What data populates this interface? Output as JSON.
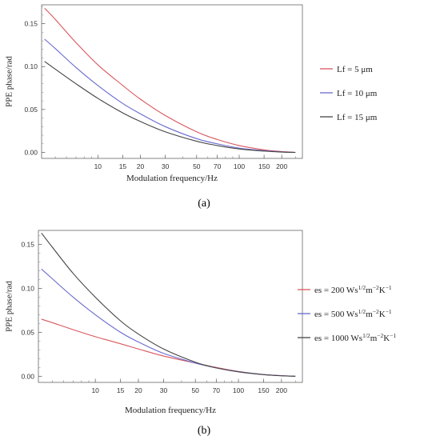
{
  "chart_data": [
    {
      "type": "line",
      "panel_label": "(a)",
      "xlabel": "Modulation frequency/Hz",
      "ylabel": "PPE phase/rad",
      "x_scale": "log",
      "xlim": [
        4,
        280
      ],
      "ylim": [
        -0.007,
        0.172
      ],
      "x_ticks": [
        10,
        15,
        20,
        30,
        50,
        70,
        100,
        150,
        200
      ],
      "y_ticks": [
        0.0,
        0.05,
        0.1,
        0.15
      ],
      "y_tick_labels": [
        "0.00",
        "0.05",
        "0.10",
        "0.15"
      ],
      "grid": false,
      "legend_position": "right",
      "series": [
        {
          "name": "Lf = 5 μm",
          "color": "#d9585f",
          "x": [
            4.2,
            5,
            7,
            10,
            15,
            20,
            30,
            50,
            70,
            100,
            150,
            200,
            250
          ],
          "y": [
            0.168,
            0.155,
            0.128,
            0.102,
            0.078,
            0.062,
            0.043,
            0.024,
            0.015,
            0.008,
            0.003,
            0.001,
            0.0
          ]
        },
        {
          "name": "Lf = 10 μm",
          "color": "#6a6acf",
          "x": [
            4.2,
            5,
            7,
            10,
            15,
            20,
            30,
            50,
            70,
            100,
            150,
            200,
            250
          ],
          "y": [
            0.132,
            0.121,
            0.099,
            0.078,
            0.057,
            0.045,
            0.03,
            0.016,
            0.01,
            0.005,
            0.002,
            0.0005,
            0.0
          ]
        },
        {
          "name": "Lf = 15 μm",
          "color": "#444444",
          "x": [
            4.2,
            5,
            7,
            10,
            15,
            20,
            30,
            50,
            70,
            100,
            150,
            200,
            250
          ],
          "y": [
            0.106,
            0.097,
            0.08,
            0.063,
            0.046,
            0.036,
            0.024,
            0.013,
            0.008,
            0.004,
            0.0015,
            0.0004,
            0.0
          ]
        }
      ]
    },
    {
      "type": "line",
      "panel_label": "(b)",
      "xlabel": "Modulation frequency/Hz",
      "ylabel": "PPE phase/rad",
      "x_scale": "log",
      "xlim": [
        4,
        280
      ],
      "ylim": [
        -0.007,
        0.166
      ],
      "x_ticks": [
        10,
        15,
        20,
        30,
        50,
        70,
        100,
        150,
        200
      ],
      "y_ticks": [
        0.0,
        0.05,
        0.1,
        0.15
      ],
      "y_tick_labels": [
        "0.00",
        "0.05",
        "0.10",
        "0.15"
      ],
      "grid": false,
      "legend_position": "right",
      "series": [
        {
          "name": "es = 200 Ws1/2m−2K−1",
          "legend_parts": [
            "es = 200 Ws",
            "1/2",
            "m",
            "−2",
            "K",
            "−1"
          ],
          "color": "#d9585f",
          "x": [
            4.2,
            5,
            7,
            10,
            15,
            20,
            30,
            50,
            70,
            100,
            150,
            200,
            250
          ],
          "y": [
            0.065,
            0.061,
            0.053,
            0.045,
            0.037,
            0.031,
            0.023,
            0.015,
            0.01,
            0.0055,
            0.002,
            0.0007,
            0.0
          ]
        },
        {
          "name": "es = 500 Ws1/2m−2K−1",
          "legend_parts": [
            "es = 500 Ws",
            "1/2",
            "m",
            "−2",
            "K",
            "−1"
          ],
          "color": "#6a6acf",
          "x": [
            4.2,
            5,
            7,
            10,
            15,
            20,
            30,
            50,
            70,
            100,
            150,
            200,
            250
          ],
          "y": [
            0.122,
            0.111,
            0.09,
            0.07,
            0.05,
            0.039,
            0.026,
            0.015,
            0.0095,
            0.0052,
            0.0019,
            0.0006,
            0.0
          ]
        },
        {
          "name": "es = 1000 Ws1/2m−2K−1",
          "legend_parts": [
            "es = 1000 Ws",
            "1/2",
            "m",
            "−2",
            "K",
            "−1"
          ],
          "color": "#444444",
          "x": [
            4.2,
            5,
            7,
            10,
            15,
            20,
            30,
            50,
            70,
            100,
            150,
            200,
            250
          ],
          "y": [
            0.163,
            0.147,
            0.117,
            0.09,
            0.063,
            0.048,
            0.031,
            0.016,
            0.0095,
            0.005,
            0.0018,
            0.0005,
            0.0
          ]
        }
      ]
    }
  ]
}
